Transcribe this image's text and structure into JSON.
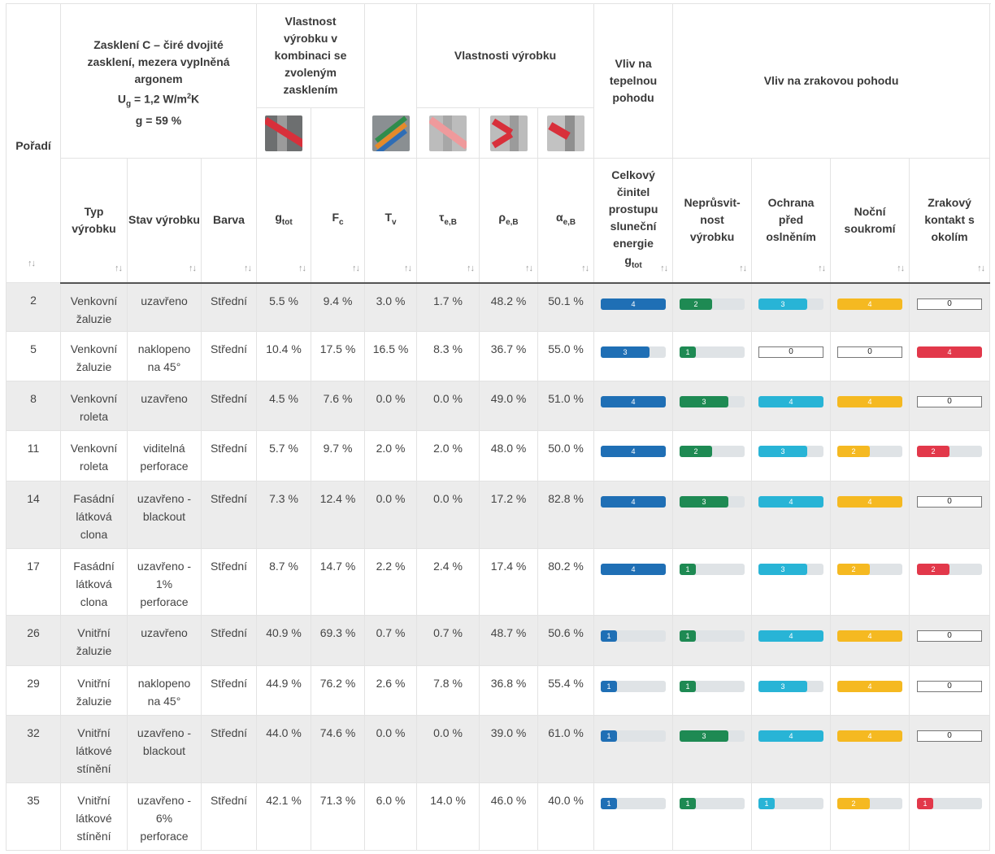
{
  "header": {
    "poradi": "Pořadí",
    "glazing_title": "Zasklení C – čiré dvojité zasklení, mezera vyplněná argonem",
    "glazing_ug_label": "U",
    "glazing_ug_sub": "g",
    "glazing_ug_value": " = 1,2 W/m",
    "glazing_ug_sup": "2",
    "glazing_ug_unit": "K",
    "glazing_g": "g = 59 %",
    "combo_title": "Vlastnost výrobku v kombinaci se zvoleným zasklením",
    "props_title": "Vlastnosti výrobku",
    "thermal_title": "Vliv na tepelnou pohodu",
    "visual_title": "Vliv na zrakovou pohodu",
    "sort_glyph": "↑↓",
    "columns": {
      "typ": "Typ výrobku",
      "stav": "Stav výrobku",
      "barva": "Barva",
      "gtot_base": "g",
      "gtot_sub": "tot",
      "fc_base": "F",
      "fc_sub": "c",
      "tv_base": "T",
      "tv_sub": "v",
      "tau_base": "τ",
      "tau_sub": "e,B",
      "rho_base": "ρ",
      "rho_sub": "e,B",
      "alpha_base": "α",
      "alpha_sub": "e,B",
      "celkovy": "Celkový činitel prostupu sluneční energie",
      "celkovy_g": "g",
      "celkovy_sub": "tot",
      "nepru": "Neprůsvit-nost výrobku",
      "ochrana": "Ochrana před oslněním",
      "nocni": "Noční soukromí",
      "zrakovy": "Zrakový kontakt s okolím"
    },
    "icons": [
      "gtot-icon",
      "tv-icon",
      "tau-icon",
      "rho-icon",
      "alpha-icon"
    ]
  },
  "colors": {
    "blue": "#1f6fb5",
    "green": "#1e8a53",
    "cyan": "#28b4d6",
    "yellow": "#f5b921",
    "red": "#e2384a"
  },
  "rows": [
    {
      "poradi": "2",
      "typ": "Venkovní žaluzie",
      "stav": "uzavřeno",
      "barva": "Střední",
      "gtot": "5.5 %",
      "fc": "9.4 %",
      "tv": "3.0 %",
      "tau": "1.7 %",
      "rho": "48.2 %",
      "alpha": "50.1 %",
      "thermal": 4,
      "nepru": 2,
      "ochrana": 3,
      "nocni": 4,
      "zrakovy": 0
    },
    {
      "poradi": "5",
      "typ": "Venkovní žaluzie",
      "stav": "naklopeno na 45°",
      "barva": "Střední",
      "gtot": "10.4 %",
      "fc": "17.5 %",
      "tv": "16.5 %",
      "tau": "8.3 %",
      "rho": "36.7 %",
      "alpha": "55.0 %",
      "thermal": 3,
      "nepru": 1,
      "ochrana": 0,
      "nocni": 0,
      "zrakovy": 4
    },
    {
      "poradi": "8",
      "typ": "Venkovní roleta",
      "stav": "uzavřeno",
      "barva": "Střední",
      "gtot": "4.5 %",
      "fc": "7.6 %",
      "tv": "0.0 %",
      "tau": "0.0 %",
      "rho": "49.0 %",
      "alpha": "51.0 %",
      "thermal": 4,
      "nepru": 3,
      "ochrana": 4,
      "nocni": 4,
      "zrakovy": 0
    },
    {
      "poradi": "11",
      "typ": "Venkovní roleta",
      "stav": "viditelná perforace",
      "barva": "Střední",
      "gtot": "5.7 %",
      "fc": "9.7 %",
      "tv": "2.0 %",
      "tau": "2.0 %",
      "rho": "48.0 %",
      "alpha": "50.0 %",
      "thermal": 4,
      "nepru": 2,
      "ochrana": 3,
      "nocni": 2,
      "zrakovy": 2
    },
    {
      "poradi": "14",
      "typ": "Fasádní látková clona",
      "stav": "uzavřeno - blackout",
      "barva": "Střední",
      "gtot": "7.3 %",
      "fc": "12.4 %",
      "tv": "0.0 %",
      "tau": "0.0 %",
      "rho": "17.2 %",
      "alpha": "82.8 %",
      "thermal": 4,
      "nepru": 3,
      "ochrana": 4,
      "nocni": 4,
      "zrakovy": 0
    },
    {
      "poradi": "17",
      "typ": "Fasádní látková clona",
      "stav": "uzavřeno - 1% perforace",
      "barva": "Střední",
      "gtot": "8.7 %",
      "fc": "14.7 %",
      "tv": "2.2 %",
      "tau": "2.4 %",
      "rho": "17.4 %",
      "alpha": "80.2 %",
      "thermal": 4,
      "nepru": 1,
      "ochrana": 3,
      "nocni": 2,
      "zrakovy": 2
    },
    {
      "poradi": "26",
      "typ": "Vnitřní žaluzie",
      "stav": "uzavřeno",
      "barva": "Střední",
      "gtot": "40.9 %",
      "fc": "69.3 %",
      "tv": "0.7 %",
      "tau": "0.7 %",
      "rho": "48.7 %",
      "alpha": "50.6 %",
      "thermal": 1,
      "nepru": 1,
      "ochrana": 4,
      "nocni": 4,
      "zrakovy": 0
    },
    {
      "poradi": "29",
      "typ": "Vnitřní žaluzie",
      "stav": "naklopeno na 45°",
      "barva": "Střední",
      "gtot": "44.9 %",
      "fc": "76.2 %",
      "tv": "2.6 %",
      "tau": "7.8 %",
      "rho": "36.8 %",
      "alpha": "55.4 %",
      "thermal": 1,
      "nepru": 1,
      "ochrana": 3,
      "nocni": 4,
      "zrakovy": 0
    },
    {
      "poradi": "32",
      "typ": "Vnitřní látkové stínění",
      "stav": "uzavřeno - blackout",
      "barva": "Střední",
      "gtot": "44.0 %",
      "fc": "74.6 %",
      "tv": "0.0 %",
      "tau": "0.0 %",
      "rho": "39.0 %",
      "alpha": "61.0 %",
      "thermal": 1,
      "nepru": 3,
      "ochrana": 4,
      "nocni": 4,
      "zrakovy": 0
    },
    {
      "poradi": "35",
      "typ": "Vnitřní látkové stínění",
      "stav": "uzavřeno - 6% perforace",
      "barva": "Střední",
      "gtot": "42.1 %",
      "fc": "71.3 %",
      "tv": "6.0 %",
      "tau": "14.0 %",
      "rho": "46.0 %",
      "alpha": "40.0 %",
      "thermal": 1,
      "nepru": 1,
      "ochrana": 1,
      "nocni": 2,
      "zrakovy": 1
    }
  ]
}
